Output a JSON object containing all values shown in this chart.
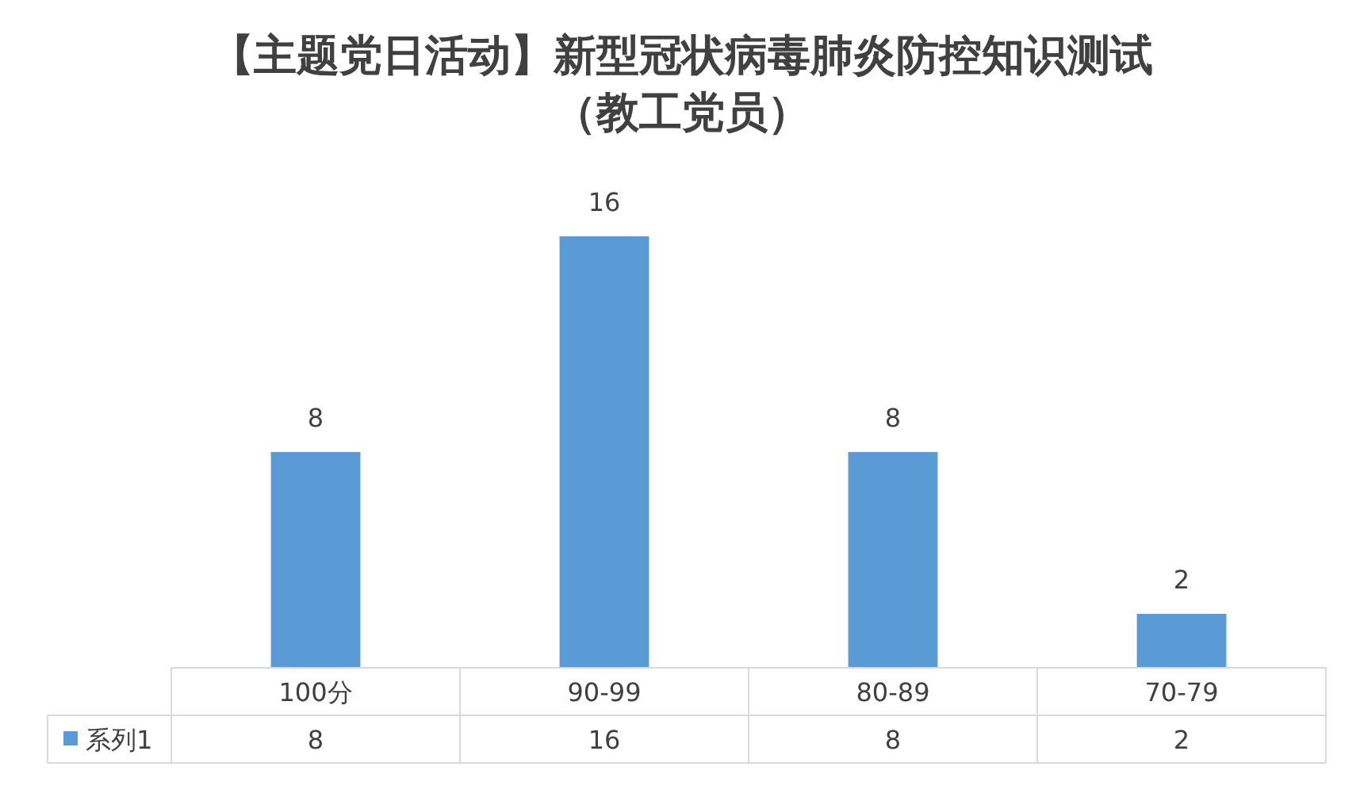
{
  "chart_data": {
    "type": "bar",
    "title": "【主题党日活动】新型冠状病毒肺炎防控知识测试（教工党员）",
    "categories": [
      "100分",
      "90-99",
      "80-89",
      "70-79"
    ],
    "series": [
      {
        "name": "系列1",
        "color": "#5b9bd5",
        "values": [
          8,
          16,
          8,
          2
        ],
        "value_labels": [
          "8",
          "16",
          "8",
          "2"
        ]
      }
    ],
    "annotations": [
      "8",
      "16",
      "8",
      "2"
    ],
    "legend": "bottom"
  }
}
